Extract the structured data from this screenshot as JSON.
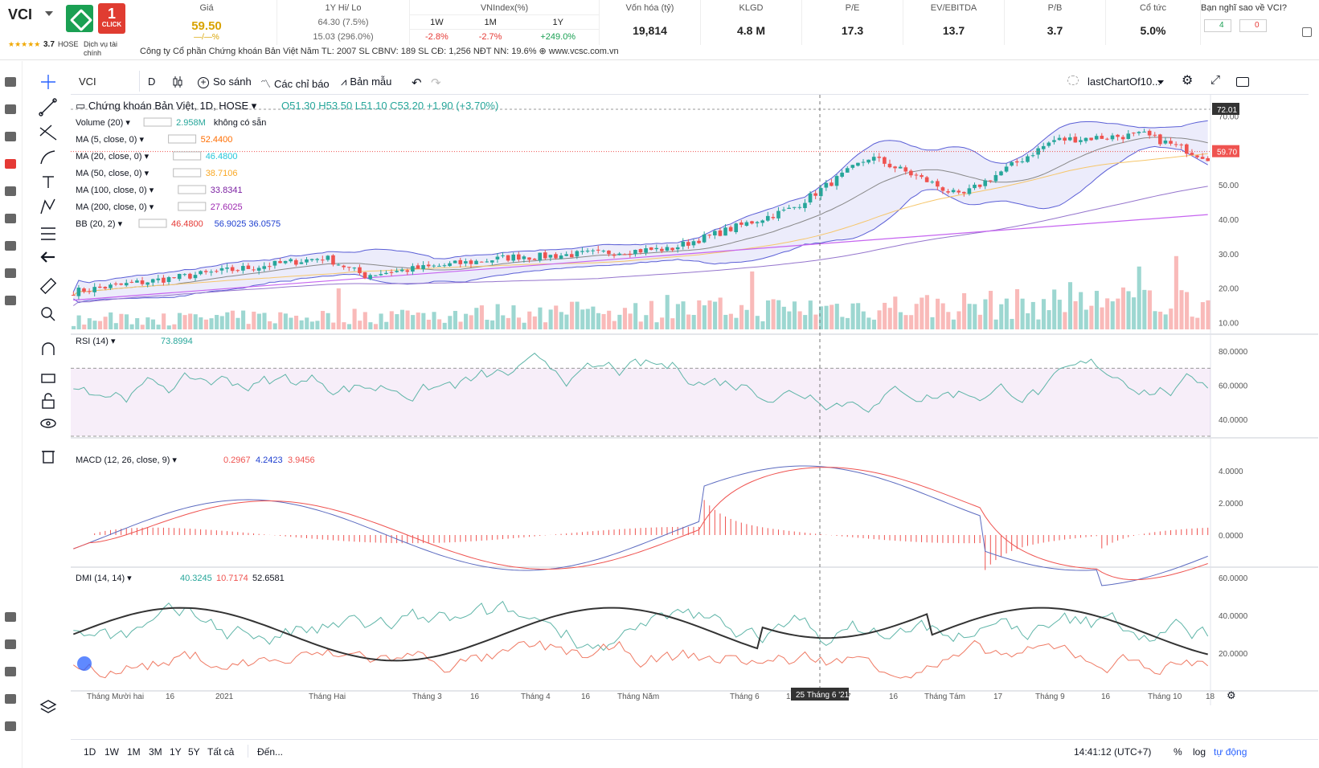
{
  "header": {
    "ticker": "VCI",
    "logo_click_label": "CLICK",
    "rating_stars": "★★★★★",
    "rating": "3.7",
    "exchange": "HOSE",
    "sector": "Dịch vụ tài chính",
    "company_line": "Công ty Cổ phần Chứng khoán Bản Việt   Năm TL: 2007   SL CBNV: 189   SL CĐ: 1,256   NĐT NN: 19.6%   ⊕ www.vcsc.com.vn",
    "price": {
      "label": "Giá",
      "value": "59.50",
      "change": "—/—%"
    },
    "hilo": {
      "label": "1Y Hi/ Lo",
      "hi": "64.30 (7.5%)",
      "lo": "15.03 (296.0%)"
    },
    "vnindex": {
      "label": "VNIndex(%)",
      "periods": [
        "1W",
        "1M",
        "1Y"
      ],
      "values": [
        "-2.8%",
        "-2.7%",
        "+249.0%"
      ]
    },
    "metrics": [
      {
        "label": "Vốn hóa (tỷ)",
        "value": "19,814"
      },
      {
        "label": "KLGD",
        "value": "4.8 M"
      },
      {
        "label": "P/E",
        "value": "17.3"
      },
      {
        "label": "EV/EBITDA",
        "value": "13.7"
      },
      {
        "label": "P/B",
        "value": "3.7"
      },
      {
        "label": "Cổ tức",
        "value": "5.0%"
      }
    ],
    "vote": {
      "label": "Bạn nghĩ sao về VCI?",
      "up": "4",
      "down": "0"
    }
  },
  "toolbar": {
    "symbol": "VCI",
    "interval": "D",
    "compare": "So sánh",
    "indicators": "Các chỉ báo",
    "templates": "Bản mẫu",
    "layout_name": "lastChartOf10..."
  },
  "legend": {
    "title": "Chứng khoán Bản Việt, 1D, HOSE",
    "ohlc": "O51.30  H53.50  L51.10  C53.20  +1.90 (+3.70%)",
    "lines": [
      {
        "name": "Volume (20)",
        "v1": "2.958M",
        "v2": "không có sẵn",
        "c1": "#26a69a",
        "c2": "#131722"
      },
      {
        "name": "MA (5, close, 0)",
        "v1": "52.4400",
        "v2": "",
        "c1": "#ff6d00",
        "c2": "#131722"
      },
      {
        "name": "MA (20, close, 0)",
        "v1": "46.4800",
        "v2": "",
        "c1": "#26c6da",
        "c2": "#131722"
      },
      {
        "name": "MA (50, close, 0)",
        "v1": "38.7106",
        "v2": "",
        "c1": "#f9a825",
        "c2": "#131722"
      },
      {
        "name": "MA (100, close, 0)",
        "v1": "33.8341",
        "v2": "",
        "c1": "#7b1fa2",
        "c2": "#131722"
      },
      {
        "name": "MA (200, close, 0)",
        "v1": "27.6025",
        "v2": "",
        "c1": "#9c27b0",
        "c2": "#131722"
      },
      {
        "name": "BB (20, 2)",
        "v1": "46.4800",
        "v2": "56.9025  36.0575",
        "c1": "#e53935",
        "c2": "#1e3fd0"
      }
    ],
    "rsi": {
      "name": "RSI (14)",
      "value": "73.8994"
    },
    "macd": {
      "name": "MACD (12, 26, close, 9)",
      "v1": "0.2967",
      "v2": "4.2423",
      "v3": "3.9456"
    },
    "dmi": {
      "name": "DMI (14, 14)",
      "v1": "40.3245",
      "v2": "10.7174",
      "v3": "52.6581"
    }
  },
  "price_axis": {
    "ticks": [
      "70.00",
      "60.00",
      "50.00",
      "40.00",
      "30.00",
      "20.00",
      "10.00"
    ],
    "last_price_tag": "59.70",
    "hi_tag": "72.01"
  },
  "rsi_axis": [
    "80.0000",
    "60.0000",
    "40.0000"
  ],
  "macd_axis": [
    "4.0000",
    "2.0000",
    "0.0000"
  ],
  "dmi_axis": [
    "60.0000",
    "40.0000",
    "20.0000"
  ],
  "time_axis": [
    "Tháng Mười hai",
    "16",
    "2021",
    "Tháng Hai",
    "Tháng 3",
    "16",
    "Tháng 4",
    "16",
    "Tháng Năm",
    "Tháng 6",
    "16",
    "7",
    "16",
    "Tháng Tám",
    "17",
    "Tháng 9",
    "16",
    "Tháng 10",
    "18"
  ],
  "crosshair_date": "25 Tháng 6 '21",
  "bottom": {
    "ranges": [
      "1D",
      "1W",
      "1M",
      "3M",
      "1Y",
      "5Y",
      "Tất cả"
    ],
    "goto": "Đến...",
    "clock": "14:41:12 (UTC+7)",
    "pct": "%",
    "log": "log",
    "auto": "tự động"
  },
  "colors": {
    "up": "#26a69a",
    "down": "#ef5350",
    "accent": "#2962ff",
    "price": "#d9a300"
  }
}
